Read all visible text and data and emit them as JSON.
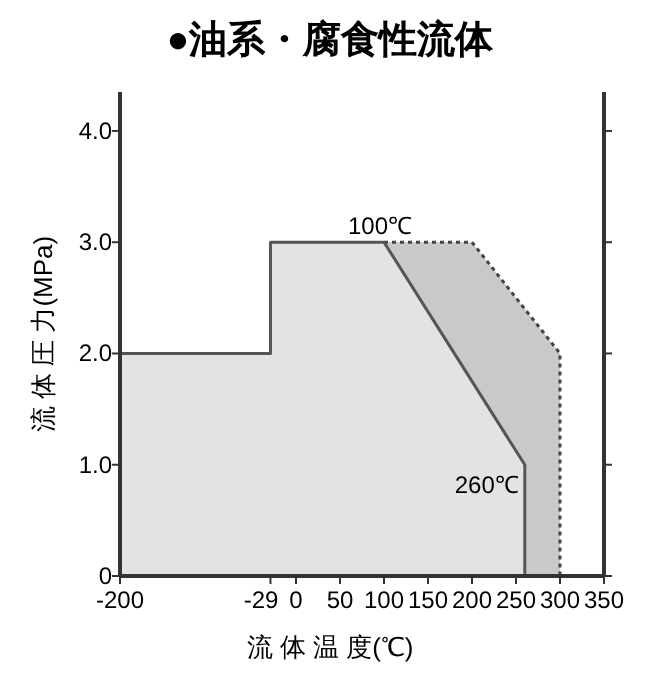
{
  "chart_data": {
    "type": "area",
    "title": "●油系・腐食性流体",
    "xlabel": "流 体 温 度(℃)",
    "ylabel": "流 体 圧 力(MPa)",
    "series": [
      {
        "color": "#c9c9c9",
        "line_style": "dotted",
        "x": [
          100,
          200,
          300,
          300
        ],
        "values": [
          3,
          3,
          2,
          0
        ]
      },
      {
        "color": "#e3e3e3",
        "line_style": "solid",
        "x": [
          -200,
          -29,
          -29,
          100,
          260,
          260
        ],
        "values": [
          2,
          2,
          3,
          3,
          1,
          0
        ]
      }
    ],
    "xlim": [
      -200,
      350
    ],
    "xticks": [
      -200,
      -29,
      0,
      50,
      100,
      150,
      200,
      250,
      300,
      350
    ],
    "ylim": [
      0,
      4.35
    ],
    "yticks": [
      0,
      {
        "value": 1,
        "label": "1.0"
      },
      {
        "value": 2,
        "label": "2.0"
      },
      {
        "value": 3,
        "label": "3.0"
      },
      {
        "value": 4,
        "label": "4.0"
      }
    ],
    "grid": false,
    "annotations": [
      {
        "text": "100℃",
        "x": 100,
        "y": 3
      },
      {
        "text": "260℃",
        "x": 260,
        "y": 1
      }
    ]
  }
}
